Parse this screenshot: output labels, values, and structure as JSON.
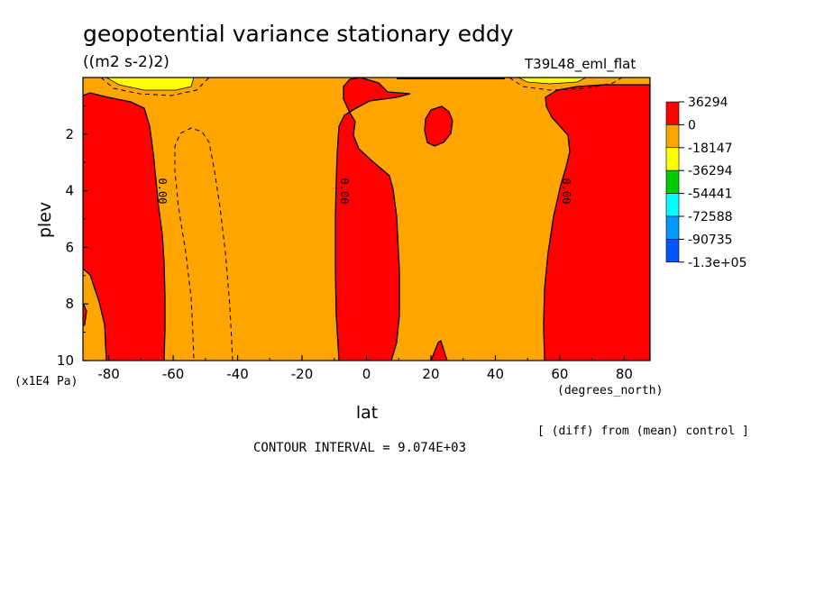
{
  "chart_data": {
    "type": "contour",
    "title": "geopotential variance stationary eddy",
    "units": "((m2 s-2)2)",
    "run_label": "T39L48_eml_flat",
    "xlabel": "lat",
    "xunits": "(degrees_north)",
    "ylabel": "plev",
    "yunits": "(x1E4 Pa)",
    "xlim": [
      -88,
      88
    ],
    "ylim": [
      10,
      0
    ],
    "x_ticks": [
      -80,
      -60,
      -40,
      -20,
      0,
      20,
      40,
      60,
      80
    ],
    "x_tick_labels": [
      "-80",
      "-60",
      "-40",
      "-20",
      "0",
      "20",
      "40",
      "60",
      "80"
    ],
    "y_ticks": [
      2,
      4,
      6,
      8,
      10
    ],
    "y_tick_labels": [
      "2",
      "4",
      "6",
      "8",
      "10"
    ],
    "contour_labels": [
      "0.00",
      "0.00",
      "0.00"
    ],
    "contour_interval_text": "CONTOUR INTERVAL = 9.074E+03",
    "comparison_note": "[ (diff) from (mean) control ]",
    "colorbar": {
      "levels": [
        "36294",
        "0",
        "-18147",
        "-36294",
        "-54441",
        "-72588",
        "-90735",
        "-1.3e+05"
      ],
      "colors": [
        "#ff0000",
        "#ffa500",
        "#ffff00",
        "#00cc00",
        "#00ffff",
        "#0099ff",
        "#0055ff"
      ]
    }
  }
}
